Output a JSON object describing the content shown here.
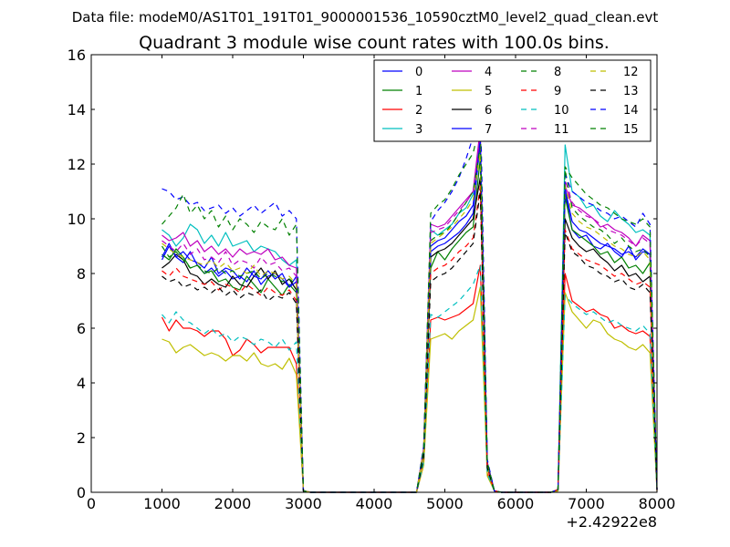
{
  "figure": {
    "suptitle": "Data file: modeM0/AS1T01_191T01_9000001536_10590cztM0_level2_quad_clean.evt"
  },
  "chart_data": {
    "type": "line",
    "title": "Quadrant 3 module wise count rates with 100.0s bins.",
    "xlabel": "",
    "ylabel": "",
    "xlim": [
      0,
      8000
    ],
    "ylim": [
      0,
      16
    ],
    "x_offset_label": "+2.42922e8",
    "xticks": [
      0,
      1000,
      2000,
      3000,
      4000,
      5000,
      6000,
      7000,
      8000
    ],
    "yticks": [
      0,
      2,
      4,
      6,
      8,
      10,
      12,
      14,
      16
    ],
    "grid": false,
    "legend_position": "top-right",
    "x": [
      1000,
      1100,
      1200,
      1300,
      1400,
      1500,
      1600,
      1700,
      1800,
      1900,
      2000,
      2100,
      2200,
      2300,
      2400,
      2500,
      2600,
      2700,
      2800,
      2900,
      3000,
      3100,
      3200,
      3300,
      3400,
      3500,
      3600,
      3700,
      3800,
      3900,
      4000,
      4100,
      4200,
      4300,
      4400,
      4500,
      4600,
      4700,
      4800,
      4900,
      5000,
      5100,
      5200,
      5300,
      5400,
      5500,
      5600,
      5700,
      5800,
      5900,
      6000,
      6100,
      6200,
      6300,
      6400,
      6500,
      6600,
      6700,
      6800,
      6900,
      7000,
      7100,
      7200,
      7300,
      7400,
      7500,
      7600,
      7700,
      7800,
      7900,
      8000
    ],
    "series": [
      {
        "name": "0",
        "color": "#0000ff",
        "dash": "solid",
        "values": [
          8.5,
          9.0,
          8.6,
          8.4,
          8.8,
          8.3,
          8.0,
          8.2,
          7.9,
          8.1,
          7.8,
          7.9,
          7.7,
          8.1,
          7.6,
          7.9,
          8.0,
          7.8,
          7.5,
          7.9,
          0.05,
          0,
          0,
          0,
          0,
          0,
          0,
          0,
          0,
          0,
          0,
          0,
          0,
          0,
          0,
          0,
          0,
          1.5,
          8.8,
          9.0,
          9.1,
          9.3,
          9.5,
          9.8,
          10.2,
          12.8,
          1.0,
          0.05,
          0,
          0,
          0,
          0,
          0,
          0,
          0,
          0,
          0.1,
          11.0,
          9.6,
          9.3,
          9.4,
          9.0,
          8.9,
          9.1,
          8.8,
          8.6,
          9.0,
          8.5,
          8.8,
          8.7,
          0.1
        ]
      },
      {
        "name": "1",
        "color": "#008000",
        "dash": "solid",
        "values": [
          8.7,
          8.5,
          8.9,
          8.6,
          8.2,
          8.3,
          8.0,
          8.1,
          7.7,
          7.8,
          7.5,
          7.4,
          7.9,
          7.6,
          7.3,
          7.8,
          7.5,
          7.2,
          7.6,
          7.3,
          0.05,
          0,
          0,
          0,
          0,
          0,
          0,
          0,
          0,
          0,
          0,
          0,
          0,
          0,
          0,
          0,
          0,
          1.4,
          8.2,
          8.8,
          8.5,
          8.9,
          9.2,
          9.5,
          9.7,
          12.2,
          0.9,
          0.05,
          0,
          0,
          0,
          0,
          0,
          0,
          0,
          0,
          0.1,
          10.8,
          9.6,
          9.4,
          9.2,
          9.0,
          8.7,
          8.8,
          8.4,
          8.6,
          8.2,
          8.3,
          8.0,
          8.4,
          0.1
        ]
      },
      {
        "name": "2",
        "color": "#ff0000",
        "dash": "solid",
        "values": [
          6.4,
          5.9,
          6.3,
          6.0,
          6.0,
          5.9,
          5.7,
          5.9,
          5.9,
          5.6,
          5.0,
          5.2,
          5.6,
          5.4,
          5.1,
          5.3,
          5.3,
          5.3,
          5.3,
          4.7,
          0.05,
          0,
          0,
          0,
          0,
          0,
          0,
          0,
          0,
          0,
          0,
          0,
          0,
          0,
          0,
          0,
          0,
          1.0,
          6.3,
          6.4,
          6.3,
          6.4,
          6.5,
          6.7,
          6.9,
          8.3,
          0.7,
          0.05,
          0,
          0,
          0,
          0,
          0,
          0,
          0,
          0,
          0.05,
          8.0,
          7.0,
          6.8,
          6.6,
          6.7,
          6.5,
          6.4,
          6.0,
          6.1,
          5.9,
          5.8,
          5.9,
          5.7,
          0.05
        ]
      },
      {
        "name": "3",
        "color": "#00bfbf",
        "dash": "solid",
        "values": [
          9.6,
          9.4,
          9.0,
          9.3,
          9.8,
          9.6,
          9.1,
          9.4,
          9.0,
          9.5,
          9.0,
          9.1,
          9.2,
          8.8,
          9.0,
          8.9,
          8.8,
          8.5,
          8.3,
          8.5,
          0.05,
          0,
          0,
          0,
          0,
          0,
          0,
          0,
          0,
          0,
          0,
          0,
          0,
          0,
          0,
          0,
          0,
          1.6,
          9.6,
          9.4,
          9.6,
          9.8,
          10.2,
          10.4,
          10.9,
          13.0,
          1.1,
          0.05,
          0,
          0,
          0,
          0,
          0,
          0,
          0,
          0,
          0.1,
          12.7,
          11.0,
          10.8,
          10.4,
          10.5,
          10.1,
          9.9,
          10.3,
          10.0,
          9.8,
          9.5,
          9.6,
          9.4,
          0.1
        ]
      },
      {
        "name": "4",
        "color": "#bf00bf",
        "dash": "solid",
        "values": [
          9.4,
          9.2,
          9.3,
          9.5,
          9.0,
          9.2,
          8.8,
          9.0,
          8.7,
          8.9,
          8.6,
          8.9,
          8.7,
          8.8,
          8.7,
          8.9,
          8.5,
          8.6,
          8.3,
          8.2,
          0.05,
          0,
          0,
          0,
          0,
          0,
          0,
          0,
          0,
          0,
          0,
          0,
          0,
          0,
          0,
          0,
          0,
          1.6,
          9.8,
          9.7,
          9.8,
          10.1,
          10.4,
          10.7,
          11.0,
          13.3,
          1.1,
          0.05,
          0,
          0,
          0,
          0,
          0,
          0,
          0,
          0,
          0.1,
          11.2,
          10.5,
          10.4,
          10.2,
          10.0,
          9.7,
          9.8,
          9.6,
          9.5,
          9.3,
          9.0,
          9.4,
          9.2,
          0.1
        ]
      },
      {
        "name": "5",
        "color": "#bfbf00",
        "dash": "solid",
        "values": [
          5.6,
          5.5,
          5.1,
          5.3,
          5.4,
          5.2,
          5.0,
          5.1,
          5.0,
          4.8,
          5.0,
          5.0,
          4.8,
          5.1,
          4.7,
          4.6,
          4.7,
          4.5,
          4.9,
          4.3,
          0.05,
          0,
          0,
          0,
          0,
          0,
          0,
          0,
          0,
          0,
          0,
          0,
          0,
          0,
          0,
          0,
          0,
          1.0,
          5.6,
          5.7,
          5.8,
          5.6,
          5.9,
          6.1,
          6.3,
          7.5,
          0.6,
          0.05,
          0,
          0,
          0,
          0,
          0,
          0,
          0,
          0,
          0.05,
          7.3,
          6.6,
          6.3,
          6.0,
          6.3,
          6.2,
          5.8,
          5.6,
          5.5,
          5.3,
          5.2,
          5.4,
          5.1,
          0.05
        ]
      },
      {
        "name": "6",
        "color": "#000000",
        "dash": "solid",
        "values": [
          8.2,
          8.4,
          8.7,
          8.5,
          8.0,
          7.9,
          7.6,
          7.8,
          7.6,
          7.5,
          7.9,
          7.6,
          7.5,
          7.9,
          8.2,
          7.8,
          8.1,
          7.6,
          7.8,
          7.4,
          0.05,
          0,
          0,
          0,
          0,
          0,
          0,
          0,
          0,
          0,
          0,
          0,
          0,
          0,
          0,
          0,
          0,
          1.4,
          8.6,
          8.8,
          8.9,
          9.1,
          9.4,
          9.7,
          10.0,
          11.5,
          1.0,
          0.05,
          0,
          0,
          0,
          0,
          0,
          0,
          0,
          0,
          0.1,
          10.0,
          9.3,
          9.0,
          8.8,
          8.9,
          8.6,
          8.4,
          8.1,
          8.3,
          7.9,
          8.0,
          7.7,
          7.9,
          0.1
        ]
      },
      {
        "name": "7",
        "color": "#0000ff",
        "dash": "solid",
        "values": [
          8.6,
          9.1,
          8.6,
          8.8,
          8.5,
          8.4,
          8.2,
          8.6,
          8.0,
          8.2,
          8.1,
          7.8,
          8.2,
          7.9,
          7.8,
          8.1,
          7.8,
          8.0,
          7.5,
          7.7,
          0.05,
          0,
          0,
          0,
          0,
          0,
          0,
          0,
          0,
          0,
          0,
          0,
          0,
          0,
          0,
          0,
          0,
          1.5,
          9.0,
          9.2,
          9.3,
          9.6,
          9.9,
          10.1,
          10.5,
          12.9,
          1.0,
          0.05,
          0,
          0,
          0,
          0,
          0,
          0,
          0,
          0,
          0.1,
          11.1,
          9.9,
          9.6,
          9.5,
          9.3,
          9.1,
          9.0,
          8.9,
          8.7,
          8.8,
          8.6,
          8.9,
          8.7,
          0.1
        ]
      },
      {
        "name": "8",
        "color": "#008000",
        "dash": "dashed",
        "values": [
          9.0,
          8.6,
          8.8,
          8.5,
          8.2,
          8.3,
          8.1,
          8.0,
          8.2,
          8.0,
          8.1,
          7.9,
          8.0,
          8.1,
          7.8,
          8.0,
          7.9,
          7.7,
          7.8,
          7.6,
          0.05,
          0,
          0,
          0,
          0,
          0,
          0,
          0,
          0,
          0,
          0,
          0,
          0,
          0,
          0,
          0,
          0,
          1.5,
          9.2,
          9.4,
          9.5,
          9.8,
          10.2,
          10.6,
          11.0,
          12.6,
          1.1,
          0.05,
          0,
          0,
          0,
          0,
          0,
          0,
          0,
          0,
          0.1,
          11.8,
          10.4,
          10.1,
          9.9,
          9.7,
          9.6,
          9.4,
          9.1,
          9.3,
          9.0,
          8.8,
          8.9,
          8.6,
          0.1
        ]
      },
      {
        "name": "9",
        "color": "#ff0000",
        "dash": "dashed",
        "values": [
          8.1,
          7.9,
          8.2,
          7.9,
          7.8,
          7.7,
          7.6,
          7.7,
          7.4,
          7.6,
          7.5,
          7.3,
          7.6,
          7.4,
          7.2,
          7.5,
          7.3,
          7.2,
          7.4,
          7.0,
          0.05,
          0,
          0,
          0,
          0,
          0,
          0,
          0,
          0,
          0,
          0,
          0,
          0,
          0,
          0,
          0,
          0,
          1.3,
          8.0,
          8.2,
          8.3,
          8.5,
          8.8,
          9.0,
          9.3,
          11.2,
          0.9,
          0.05,
          0,
          0,
          0,
          0,
          0,
          0,
          0,
          0,
          0.1,
          9.6,
          8.9,
          8.7,
          8.5,
          8.4,
          8.3,
          8.1,
          7.9,
          8.0,
          7.8,
          7.6,
          7.7,
          7.5,
          0.1
        ]
      },
      {
        "name": "10",
        "color": "#00bfbf",
        "dash": "dashed",
        "values": [
          6.5,
          6.2,
          6.6,
          6.3,
          6.2,
          6.0,
          5.8,
          6.0,
          5.7,
          5.8,
          5.5,
          5.7,
          5.6,
          5.4,
          5.6,
          5.5,
          5.3,
          5.6,
          5.2,
          5.5,
          0.05,
          0,
          0,
          0,
          0,
          0,
          0,
          0,
          0,
          0,
          0,
          0,
          0,
          0,
          0,
          0,
          0,
          1.1,
          6.5,
          6.4,
          6.6,
          6.8,
          7.0,
          7.3,
          7.6,
          8.3,
          0.7,
          0.05,
          0,
          0,
          0,
          0,
          0,
          0,
          0,
          0,
          0.05,
          7.2,
          6.9,
          6.7,
          6.5,
          6.6,
          6.4,
          6.2,
          6.3,
          6.1,
          6.0,
          5.9,
          6.1,
          5.8,
          0.05
        ]
      },
      {
        "name": "11",
        "color": "#bf00bf",
        "dash": "dashed",
        "values": [
          9.2,
          9.0,
          8.8,
          9.1,
          8.7,
          8.9,
          8.5,
          8.6,
          8.4,
          8.8,
          8.3,
          8.5,
          8.4,
          8.2,
          8.6,
          8.3,
          8.4,
          8.1,
          8.2,
          7.9,
          0.05,
          0,
          0,
          0,
          0,
          0,
          0,
          0,
          0,
          0,
          0,
          0,
          0,
          0,
          0,
          0,
          0,
          1.6,
          9.5,
          9.6,
          9.7,
          10.0,
          10.3,
          10.6,
          11.0,
          13.1,
          1.1,
          0.05,
          0,
          0,
          0,
          0,
          0,
          0,
          0,
          0,
          0.1,
          11.4,
          10.6,
          10.3,
          10.1,
          10.0,
          9.8,
          9.6,
          9.5,
          9.4,
          9.2,
          9.0,
          9.3,
          9.1,
          0.1
        ]
      },
      {
        "name": "12",
        "color": "#bfbf00",
        "dash": "dashed",
        "values": [
          9.1,
          8.9,
          8.7,
          8.6,
          8.5,
          8.4,
          8.3,
          8.5,
          8.2,
          8.4,
          8.1,
          8.2,
          8.0,
          8.3,
          7.9,
          8.1,
          8.0,
          7.8,
          7.9,
          7.6,
          0.05,
          0,
          0,
          0,
          0,
          0,
          0,
          0,
          0,
          0,
          0,
          0,
          0,
          0,
          0,
          0,
          0,
          1.5,
          9.1,
          9.3,
          9.5,
          9.7,
          10.0,
          10.3,
          10.7,
          12.4,
          1.0,
          0.05,
          0,
          0,
          0,
          0,
          0,
          0,
          0,
          0,
          0.1,
          11.2,
          10.2,
          9.9,
          9.7,
          9.6,
          9.4,
          9.2,
          9.0,
          8.9,
          8.7,
          8.6,
          8.8,
          8.5,
          0.1
        ]
      },
      {
        "name": "13",
        "color": "#000000",
        "dash": "dashed",
        "values": [
          7.9,
          7.7,
          7.8,
          7.5,
          7.6,
          7.4,
          7.5,
          7.3,
          7.5,
          7.2,
          7.4,
          7.1,
          7.3,
          7.2,
          7.4,
          7.0,
          7.2,
          7.1,
          7.3,
          6.9,
          0.05,
          0,
          0,
          0,
          0,
          0,
          0,
          0,
          0,
          0,
          0,
          0,
          0,
          0,
          0,
          0,
          0,
          1.3,
          7.7,
          7.9,
          8.0,
          8.2,
          8.5,
          8.8,
          9.1,
          11.0,
          0.9,
          0.05,
          0,
          0,
          0,
          0,
          0,
          0,
          0,
          0,
          0.1,
          9.5,
          8.8,
          8.6,
          8.3,
          8.2,
          8.0,
          7.9,
          7.7,
          7.8,
          7.5,
          7.4,
          7.6,
          7.3,
          0.1
        ]
      },
      {
        "name": "14",
        "color": "#0000ff",
        "dash": "dashed",
        "values": [
          11.1,
          11.0,
          10.7,
          10.8,
          10.5,
          10.6,
          10.3,
          10.4,
          10.5,
          10.2,
          10.4,
          10.1,
          10.3,
          10.5,
          10.2,
          10.4,
          10.6,
          10.1,
          10.3,
          10.0,
          0.05,
          0,
          0,
          0,
          0,
          0,
          0,
          0,
          0,
          0,
          0,
          0,
          0,
          0,
          0,
          0,
          0,
          1.7,
          9.9,
          10.3,
          10.6,
          11.0,
          11.5,
          12.2,
          13.0,
          14.6,
          1.2,
          0.05,
          0,
          0,
          0,
          0,
          0,
          0,
          0,
          0,
          0.1,
          11.6,
          11.0,
          10.8,
          10.6,
          10.5,
          10.3,
          10.2,
          10.0,
          10.1,
          9.9,
          9.7,
          10.2,
          9.8,
          0.1
        ]
      },
      {
        "name": "15",
        "color": "#008000",
        "dash": "dashed",
        "values": [
          9.8,
          10.1,
          10.4,
          10.9,
          10.2,
          10.5,
          10.0,
          10.3,
          9.7,
          10.1,
          9.6,
          10.0,
          9.8,
          9.5,
          9.9,
          9.7,
          9.6,
          10.0,
          9.4,
          9.8,
          0.05,
          0,
          0,
          0,
          0,
          0,
          0,
          0,
          0,
          0,
          0,
          0,
          0,
          0,
          0,
          0,
          0,
          1.6,
          10.2,
          10.5,
          10.7,
          11.1,
          11.6,
          12.0,
          12.4,
          13.5,
          1.1,
          0.05,
          0,
          0,
          0,
          0,
          0,
          0,
          0,
          0,
          0.1,
          11.9,
          11.5,
          11.2,
          10.9,
          10.7,
          10.5,
          10.4,
          10.2,
          10.0,
          9.9,
          9.8,
          10.0,
          9.7,
          0.1
        ]
      }
    ]
  }
}
